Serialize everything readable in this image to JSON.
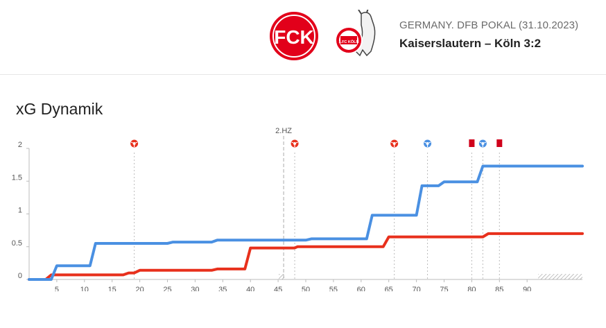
{
  "match": {
    "competition": "GERMANY. DFB POKAL (31.10.2023)",
    "score_line": "Kaiserslautern – Köln 3:2"
  },
  "logos": {
    "home_text": "FCK",
    "away_text": "1.FC KÖLN"
  },
  "section_title": "xG Dynamik",
  "colors": {
    "home": "#e8301c",
    "away": "#4a90e2",
    "card": "#d0021b"
  },
  "chart_data": {
    "type": "line",
    "title": "",
    "xlabel": "",
    "ylabel": "",
    "xlim": [
      0,
      100
    ],
    "ylim": [
      0,
      2
    ],
    "x_ticks": [
      5,
      10,
      15,
      20,
      25,
      30,
      35,
      40,
      45,
      50,
      55,
      60,
      65,
      70,
      75,
      80,
      85,
      90
    ],
    "y_ticks": [
      0,
      0.5,
      1,
      1.5,
      2
    ],
    "y_tick_labels": [
      "0",
      "0.5",
      "1",
      "1.5",
      "2"
    ],
    "halftime": {
      "minute": 46,
      "label": "2.HZ"
    },
    "series": [
      {
        "team": "home",
        "color": "#e8301c",
        "points": [
          [
            0,
            0
          ],
          [
            3,
            0
          ],
          [
            4,
            0.07
          ],
          [
            17,
            0.07
          ],
          [
            18,
            0.1
          ],
          [
            19,
            0.1
          ],
          [
            20,
            0.14
          ],
          [
            33,
            0.14
          ],
          [
            34,
            0.16
          ],
          [
            39,
            0.16
          ],
          [
            40,
            0.48
          ],
          [
            48,
            0.48
          ],
          [
            48.5,
            0.5
          ],
          [
            64,
            0.5
          ],
          [
            65,
            0.65
          ],
          [
            82,
            0.65
          ],
          [
            83,
            0.7
          ],
          [
            100,
            0.7
          ]
        ]
      },
      {
        "team": "away",
        "color": "#4a90e2",
        "points": [
          [
            0,
            0
          ],
          [
            4,
            0
          ],
          [
            5,
            0.21
          ],
          [
            11,
            0.21
          ],
          [
            12,
            0.55
          ],
          [
            25,
            0.55
          ],
          [
            26,
            0.57
          ],
          [
            33,
            0.57
          ],
          [
            34,
            0.6
          ],
          [
            50,
            0.6
          ],
          [
            51,
            0.62
          ],
          [
            61,
            0.62
          ],
          [
            62,
            0.98
          ],
          [
            70,
            0.98
          ],
          [
            71,
            1.43
          ],
          [
            74,
            1.43
          ],
          [
            75,
            1.49
          ],
          [
            81,
            1.49
          ],
          [
            82,
            1.73
          ],
          [
            100,
            1.73
          ]
        ]
      }
    ],
    "events": [
      {
        "minute": 19,
        "type": "goal",
        "team": "home"
      },
      {
        "minute": 48,
        "type": "goal",
        "team": "home"
      },
      {
        "minute": 66,
        "type": "goal",
        "team": "home"
      },
      {
        "minute": 72,
        "type": "goal",
        "team": "away"
      },
      {
        "minute": 80,
        "type": "red-card",
        "team": "home"
      },
      {
        "minute": 82,
        "type": "goal",
        "team": "away"
      },
      {
        "minute": 85,
        "type": "red-card",
        "team": "home"
      }
    ],
    "grid": false,
    "legend": "none"
  }
}
